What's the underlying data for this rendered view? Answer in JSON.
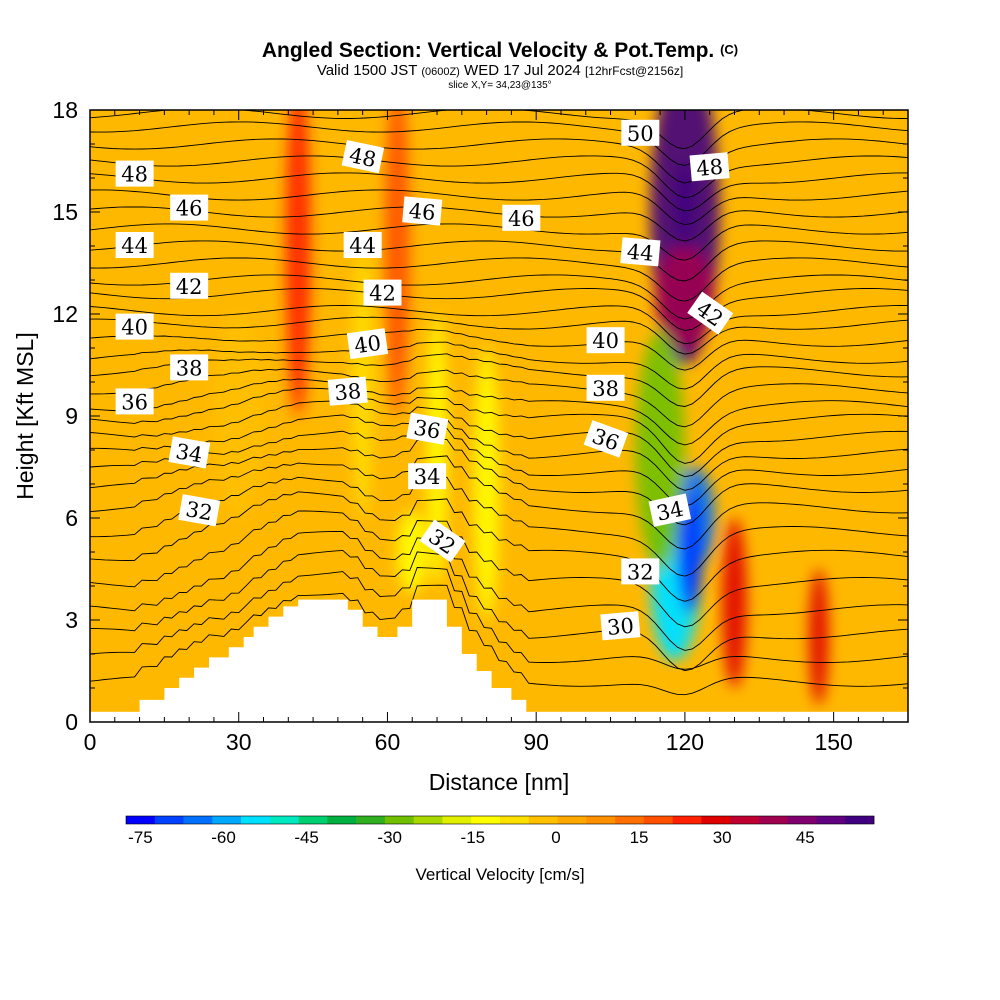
{
  "chart_data": {
    "type": "heatmap",
    "title": "Angled Section: Vertical Velocity & Pot.Temp.",
    "title_unit": "(C)",
    "subtitle": {
      "prefix": "Valid 1500 JST",
      "utc": "(0600Z)",
      "date": "WED 17 Jul 2024",
      "forecast": "[12hrFcst@2156z]"
    },
    "slice_text": "slice X,Y= 34,23@135°",
    "xlabel": "Distance [nm]",
    "ylabel": "Height [Kft MSL]",
    "xlim": [
      0,
      165
    ],
    "ylim": [
      0,
      18
    ],
    "x_ticks": [
      0,
      30,
      60,
      90,
      120,
      150
    ],
    "y_ticks": [
      0,
      3,
      6,
      9,
      12,
      15,
      18
    ],
    "colorbar": {
      "title": "Vertical Velocity [cm/s]",
      "min": -75,
      "max": 55,
      "step": 5,
      "tick_values": [
        -75,
        -60,
        -45,
        -30,
        -15,
        0,
        15,
        30,
        45
      ],
      "colors": [
        "#0000ff",
        "#0040ff",
        "#0070ff",
        "#00a8ff",
        "#00e0ff",
        "#00e8c0",
        "#00d070",
        "#00b040",
        "#30b020",
        "#70c000",
        "#a8d800",
        "#e0f000",
        "#ffff00",
        "#ffe000",
        "#ffc000",
        "#ffa800",
        "#ff9000",
        "#ff7000",
        "#ff5000",
        "#ff2000",
        "#e00000",
        "#c00030",
        "#a00050",
        "#800070",
        "#600080",
        "#400080"
      ]
    },
    "velocity_features": [
      {
        "x": 120,
        "z": 15,
        "value": 52
      },
      {
        "x": 120,
        "z": 12.5,
        "value": 35
      },
      {
        "x": 118,
        "z": 4,
        "value": -55
      },
      {
        "x": 122,
        "z": 6,
        "value": -65
      },
      {
        "x": 115,
        "z": 8,
        "value": -30
      },
      {
        "x": 130,
        "z": 3.5,
        "value": 25
      },
      {
        "x": 147,
        "z": 2.5,
        "value": 25
      },
      {
        "x": 42,
        "z": 14,
        "value": 20
      },
      {
        "x": 62,
        "z": 14,
        "value": 15
      },
      {
        "x": 55,
        "z": 10,
        "value": -8
      },
      {
        "x": 70,
        "z": 8,
        "value": -12
      },
      {
        "x": 80,
        "z": 7,
        "value": -12
      },
      {
        "x": 30,
        "z": 9,
        "value": -5
      },
      {
        "x": 65,
        "z": 5,
        "value": -15
      }
    ],
    "terrain": [
      [
        10,
        0.3
      ],
      [
        10,
        0.65
      ],
      [
        15,
        0.65
      ],
      [
        15,
        1.0
      ],
      [
        18,
        1.0
      ],
      [
        18,
        1.3
      ],
      [
        21,
        1.3
      ],
      [
        21,
        1.6
      ],
      [
        24,
        1.6
      ],
      [
        24,
        1.9
      ],
      [
        28,
        1.9
      ],
      [
        28,
        2.2
      ],
      [
        31,
        2.2
      ],
      [
        31,
        2.5
      ],
      [
        33,
        2.5
      ],
      [
        33,
        2.8
      ],
      [
        36,
        2.8
      ],
      [
        36,
        3.1
      ],
      [
        39,
        3.1
      ],
      [
        39,
        3.4
      ],
      [
        42,
        3.4
      ],
      [
        42,
        3.6
      ],
      [
        52,
        3.6
      ],
      [
        52,
        3.3
      ],
      [
        55,
        3.3
      ],
      [
        55,
        2.8
      ],
      [
        58,
        2.8
      ],
      [
        58,
        2.5
      ],
      [
        62,
        2.5
      ],
      [
        62,
        2.8
      ],
      [
        65,
        2.8
      ],
      [
        65,
        3.6
      ],
      [
        72,
        3.6
      ],
      [
        72,
        2.8
      ],
      [
        75,
        2.8
      ],
      [
        75,
        2.0
      ],
      [
        78,
        2.0
      ],
      [
        78,
        1.5
      ],
      [
        81,
        1.5
      ],
      [
        81,
        1.0
      ],
      [
        85,
        1.0
      ],
      [
        85,
        0.65
      ],
      [
        88,
        0.65
      ],
      [
        88,
        0.3
      ]
    ],
    "isentropes_z0": [
      1.2,
      1.9,
      2.6,
      3.3,
      4.1,
      4.9,
      5.6,
      6.3,
      6.9,
      7.4,
      7.9,
      8.4,
      8.9,
      9.3,
      9.8,
      10.3,
      10.7,
      11.2,
      11.7,
      12.1,
      12.6,
      13.0,
      13.5,
      14.0,
      14.5,
      15.0,
      15.5,
      16.0,
      16.5,
      17.0,
      17.5,
      17.9
    ],
    "contour_labels": [
      {
        "text": "48",
        "x": 9,
        "z": 16.1,
        "angle": 0
      },
      {
        "text": "46",
        "x": 20,
        "z": 15.1,
        "angle": 0
      },
      {
        "text": "44",
        "x": 9,
        "z": 14.0,
        "angle": 0
      },
      {
        "text": "42",
        "x": 20,
        "z": 12.8,
        "angle": 0
      },
      {
        "text": "40",
        "x": 9,
        "z": 11.6,
        "angle": 0
      },
      {
        "text": "38",
        "x": 20,
        "z": 10.4,
        "angle": 0
      },
      {
        "text": "36",
        "x": 9,
        "z": 9.4,
        "angle": 0
      },
      {
        "text": "34",
        "x": 20,
        "z": 7.9,
        "angle": 10
      },
      {
        "text": "32",
        "x": 22,
        "z": 6.2,
        "angle": 10
      },
      {
        "text": "48",
        "x": 55,
        "z": 16.6,
        "angle": 12
      },
      {
        "text": "44",
        "x": 55,
        "z": 14.0,
        "angle": 0
      },
      {
        "text": "42",
        "x": 59,
        "z": 12.6,
        "angle": 0
      },
      {
        "text": "40",
        "x": 56,
        "z": 11.1,
        "angle": -8
      },
      {
        "text": "38",
        "x": 52,
        "z": 9.7,
        "angle": -5
      },
      {
        "text": "46",
        "x": 67,
        "z": 15.0,
        "angle": 5
      },
      {
        "text": "36",
        "x": 68,
        "z": 8.6,
        "angle": 10
      },
      {
        "text": "34",
        "x": 68,
        "z": 7.2,
        "angle": 0
      },
      {
        "text": "32",
        "x": 71,
        "z": 5.3,
        "angle": 35
      },
      {
        "text": "46",
        "x": 87,
        "z": 14.8,
        "angle": 0
      },
      {
        "text": "50",
        "x": 111,
        "z": 17.3,
        "angle": 0
      },
      {
        "text": "48",
        "x": 125,
        "z": 16.3,
        "angle": -5
      },
      {
        "text": "44",
        "x": 111,
        "z": 13.8,
        "angle": 5
      },
      {
        "text": "42",
        "x": 125,
        "z": 12.0,
        "angle": 35
      },
      {
        "text": "40",
        "x": 104,
        "z": 11.2,
        "angle": 0
      },
      {
        "text": "38",
        "x": 104,
        "z": 9.8,
        "angle": 0
      },
      {
        "text": "36",
        "x": 104,
        "z": 8.3,
        "angle": 20
      },
      {
        "text": "34",
        "x": 117,
        "z": 6.2,
        "angle": -12
      },
      {
        "text": "32",
        "x": 111,
        "z": 4.4,
        "angle": 0
      },
      {
        "text": "30",
        "x": 107,
        "z": 2.8,
        "angle": -5
      }
    ]
  }
}
